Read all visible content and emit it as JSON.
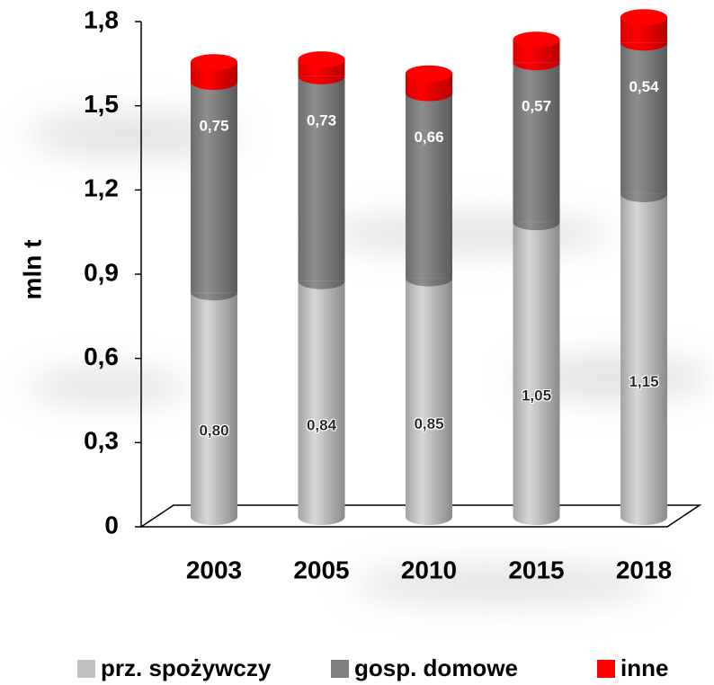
{
  "chart_data": {
    "type": "bar",
    "stacked": true,
    "y_label": "mln t",
    "categories": [
      "2003",
      "2005",
      "2010",
      "2015",
      "2018"
    ],
    "series": [
      {
        "name": "prz. spożywczy",
        "color": "#c0c0c0",
        "values": [
          0.8,
          0.84,
          0.85,
          1.05,
          1.15
        ],
        "value_labels": [
          "0,80",
          "0,84",
          "0,85",
          "1,05",
          "1,15"
        ]
      },
      {
        "name": "gosp. domowe",
        "color": "#7f7f7f",
        "values": [
          0.75,
          0.73,
          0.66,
          0.57,
          0.54
        ],
        "value_labels": [
          "0,75",
          "0,73",
          "0,66",
          "0,57",
          "0,54"
        ]
      },
      {
        "name": "inne",
        "color": "#ff0000",
        "values": [
          0.07,
          0.06,
          0.07,
          0.08,
          0.09
        ]
      }
    ],
    "ylim": [
      0,
      1.8
    ],
    "yticks": [
      0,
      {
        "value": 0.3,
        "label": "0,3"
      },
      {
        "value": 0.6,
        "label": "0,6"
      },
      {
        "value": 0.9,
        "label": "0,9"
      },
      {
        "value": 1.2,
        "label": "1,2"
      },
      {
        "value": 1.5,
        "label": "1,5"
      },
      {
        "value": 1.8,
        "label": "1,8"
      }
    ]
  }
}
